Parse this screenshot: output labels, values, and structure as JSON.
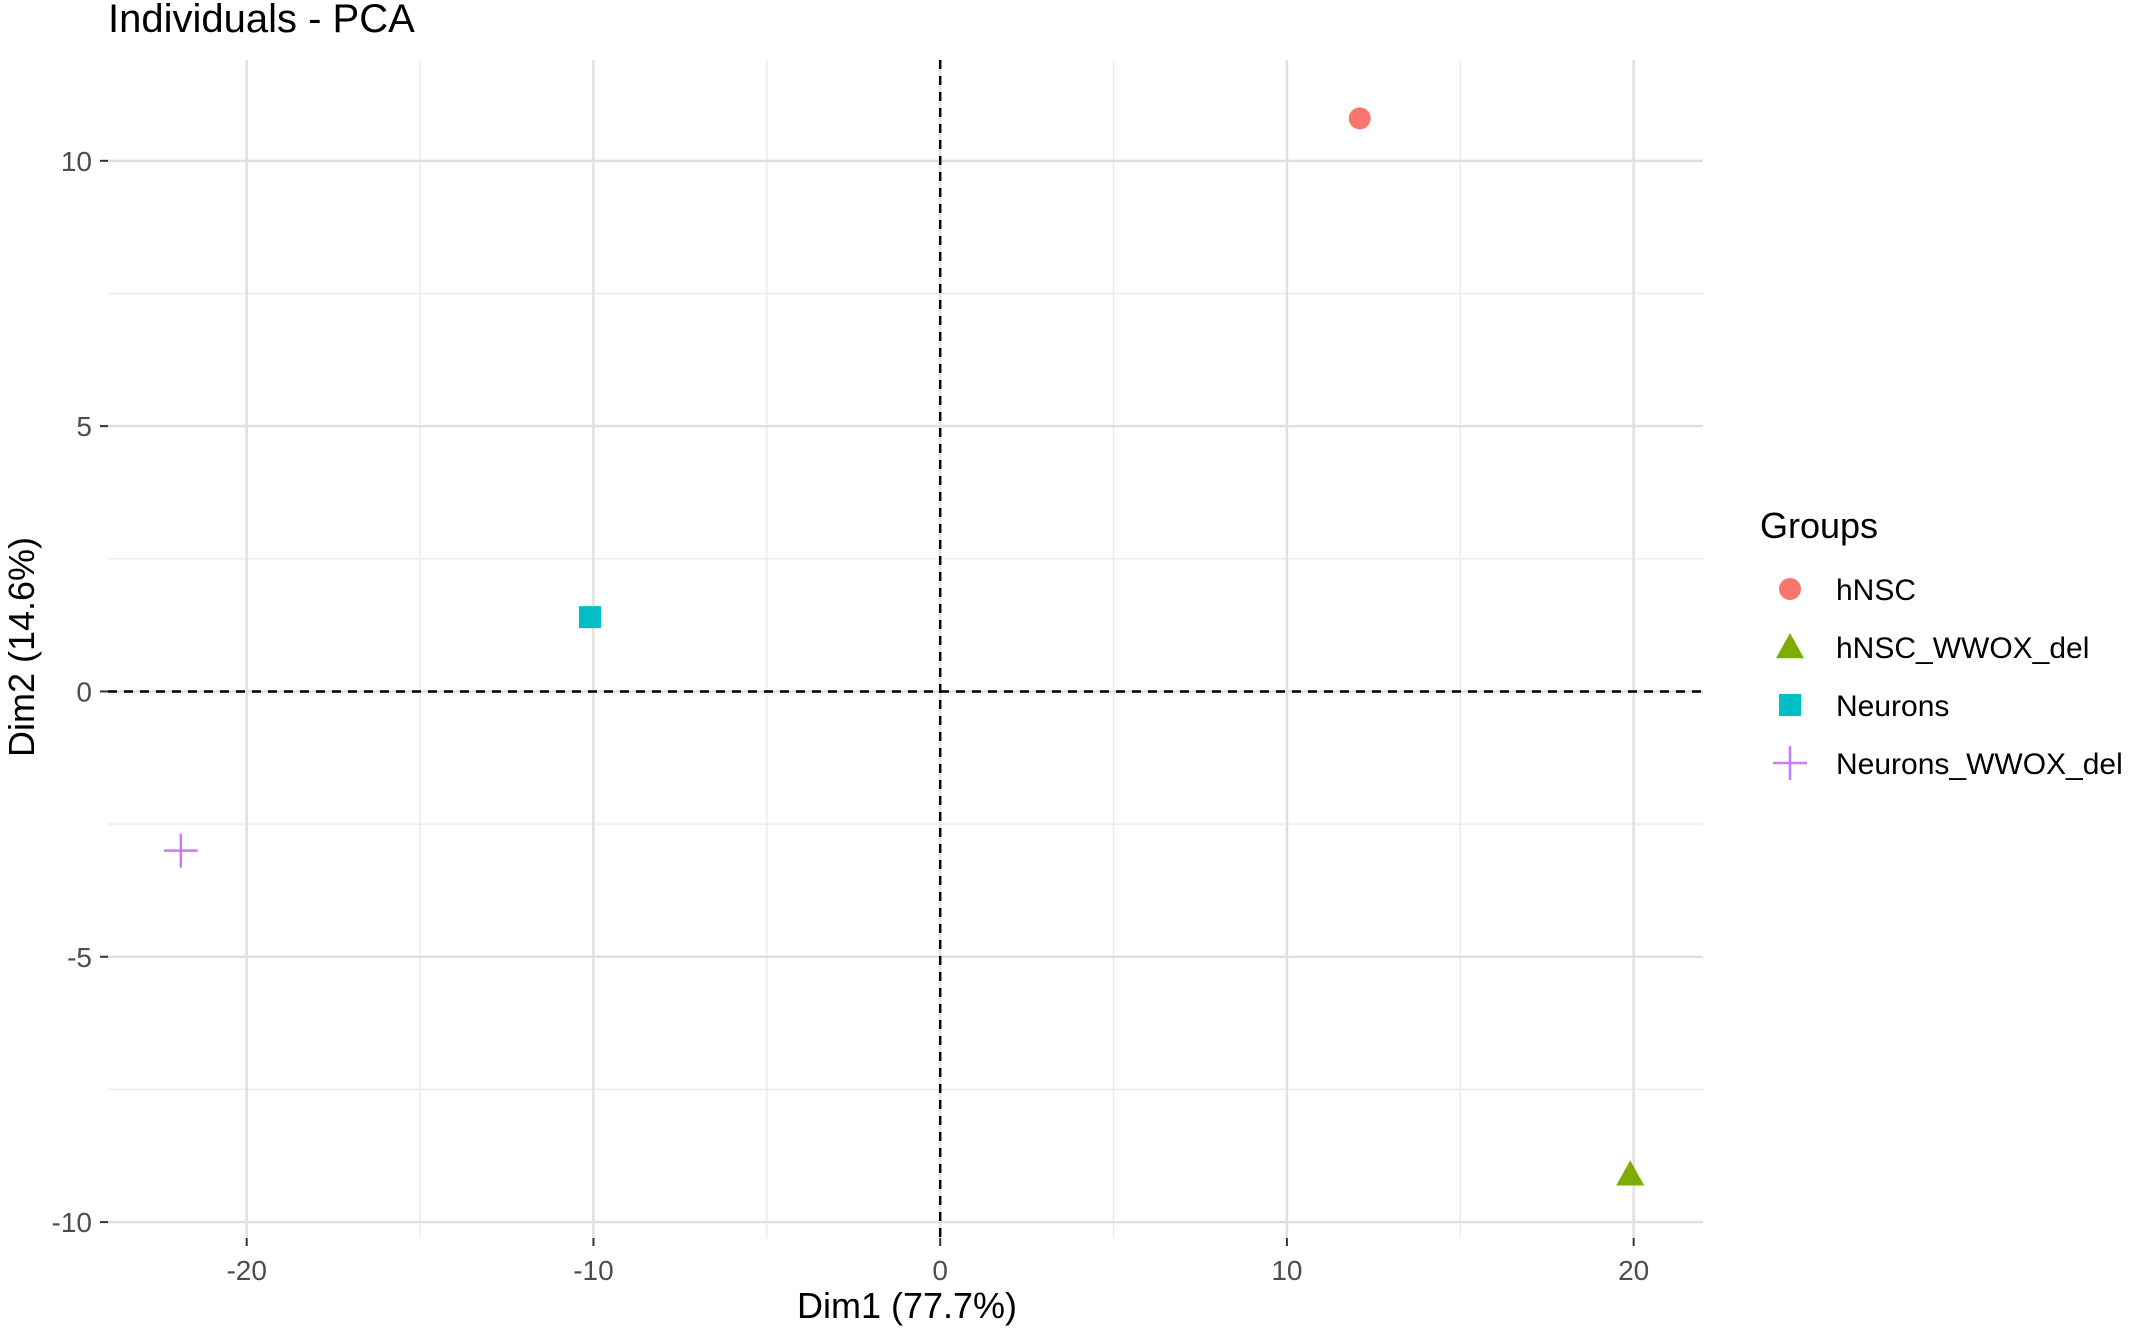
{
  "chart_data": {
    "type": "scatter",
    "title": "Individuals - PCA",
    "xlabel": "Dim1 (77.7%)",
    "ylabel": "Dim2 (14.6%)",
    "xlim": [
      -24,
      22
    ],
    "ylim": [
      -10.3,
      11.9
    ],
    "x_ticks": [
      -20,
      -10,
      0,
      10,
      20
    ],
    "y_ticks": [
      -10,
      -5,
      0,
      5,
      10
    ],
    "x_tick_labels": [
      "-20",
      "-10",
      "0",
      "10",
      "20"
    ],
    "y_tick_labels": [
      "-10",
      "-5",
      "0",
      "5",
      "10"
    ],
    "grid": true,
    "reference_lines": {
      "x": 0,
      "y": 0,
      "style": "dashed"
    },
    "legend": {
      "title": "Groups",
      "position": "right"
    },
    "series": [
      {
        "name": "hNSC",
        "shape": "circle",
        "color": "#F8766D",
        "x": [
          12.1
        ],
        "y": [
          10.8
        ]
      },
      {
        "name": "hNSC_WWOX_del",
        "shape": "triangle",
        "color": "#7CAE00",
        "x": [
          19.9
        ],
        "y": [
          -9.1
        ]
      },
      {
        "name": "Neurons",
        "shape": "square",
        "color": "#00BFC4",
        "x": [
          -10.1
        ],
        "y": [
          1.4
        ]
      },
      {
        "name": "Neurons_WWOX_del",
        "shape": "cross",
        "color": "#C77CFF",
        "x": [
          -21.9
        ],
        "y": [
          -3.0
        ]
      }
    ]
  }
}
